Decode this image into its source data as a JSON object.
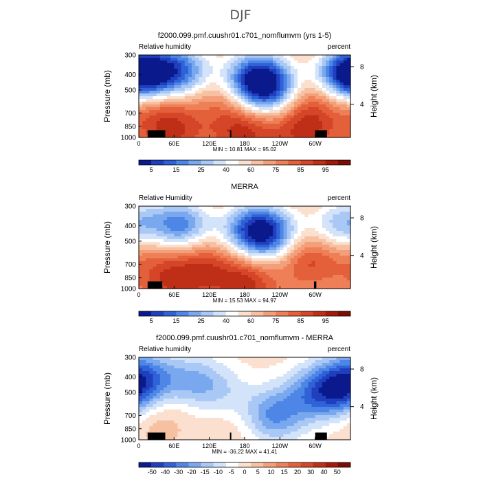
{
  "figure": {
    "suptitle": "DJF"
  },
  "colorscales": {
    "rh": {
      "colors": [
        "#0a1a8c",
        "#1f3fbf",
        "#2f62d6",
        "#4d86e6",
        "#7aa8ef",
        "#a9c8f5",
        "#d3e3fa",
        "#ffffff",
        "#fbe0cf",
        "#f7c0a0",
        "#f3a07a",
        "#ee7f57",
        "#e4603a",
        "#d54527",
        "#bf2e16",
        "#a31a0b",
        "#7d0c04"
      ],
      "tick_labels": [
        "5",
        "15",
        "25",
        "40",
        "60",
        "75",
        "85",
        "95"
      ]
    },
    "diff": {
      "colors": [
        "#0a1a8c",
        "#1f3fbf",
        "#2f62d6",
        "#4d86e6",
        "#7aa8ef",
        "#a9c8f5",
        "#d3e3fa",
        "#ffffff",
        "#fbe0cf",
        "#f7c0a0",
        "#f3a07a",
        "#ee7f57",
        "#e4603a",
        "#d54527",
        "#bf2e16",
        "#a31a0b",
        "#7d0c04"
      ],
      "tick_labels": [
        "-50",
        "-40",
        "-30",
        "-20",
        "-15",
        "-10",
        "-5",
        "0",
        "5",
        "10",
        "15",
        "20",
        "30",
        "40",
        "50"
      ]
    }
  },
  "chart_data": [
    {
      "type": "heatmap",
      "title": "f2000.099.pmf.cuushr01.c701_nomflumvm (yrs 1-5)",
      "left_label": "Relative humidity",
      "right_label": "percent",
      "ylabel": "Pressure (mb)",
      "y2label": "Height (km)",
      "y_ticks": [
        "300",
        "400",
        "500",
        "700",
        "850",
        "1000"
      ],
      "y2_ticks": [
        "8",
        "4"
      ],
      "x_ticks": [
        "0",
        "60E",
        "120E",
        "180",
        "120W",
        "60W"
      ],
      "xlim": [
        0,
        360
      ],
      "ylim": [
        1000,
        300
      ],
      "stats": "MIN =   10.81   MAX =   95.02",
      "min": 10.81,
      "max": 95.02,
      "scale": "rh",
      "fields": {
        "base": 60,
        "blobs": [
          {
            "lon": 70,
            "p": 380,
            "amp": -40
          },
          {
            "lon": 200,
            "p": 420,
            "amp": -45
          },
          {
            "lon": 220,
            "p": 500,
            "amp": -35
          },
          {
            "lon": 5,
            "p": 400,
            "amp": -35
          },
          {
            "lon": 355,
            "p": 400,
            "amp": -35
          },
          {
            "lon": 30,
            "p": 650,
            "amp": 15
          },
          {
            "lon": 300,
            "p": 600,
            "amp": 15
          },
          {
            "lon": 140,
            "p": 600,
            "amp": 10
          },
          {
            "lon": 180,
            "p": 920,
            "amp": 25
          },
          {
            "lon": 60,
            "p": 920,
            "amp": 20
          },
          {
            "lon": 280,
            "p": 920,
            "amp": 22
          }
        ]
      },
      "topography_lon": [
        [
          15,
          45
        ],
        [
          155,
          157
        ],
        [
          300,
          320
        ]
      ]
    },
    {
      "type": "heatmap",
      "title": "MERRA",
      "left_label": "Relative Humidity",
      "right_label": "percent",
      "ylabel": "Pressure (mb)",
      "y2label": "Height (km)",
      "y_ticks": [
        "300",
        "400",
        "500",
        "700",
        "850",
        "1000"
      ],
      "y2_ticks": [
        "8",
        "4"
      ],
      "x_ticks": [
        "0",
        "60E",
        "120E",
        "180",
        "120W",
        "60W"
      ],
      "xlim": [
        0,
        360
      ],
      "ylim": [
        1000,
        300
      ],
      "stats": "MIN =   15.53   MAX =   94.97",
      "min": 15.53,
      "max": 94.97,
      "scale": "rh",
      "fields": {
        "base": 60,
        "blobs": [
          {
            "lon": 70,
            "p": 400,
            "amp": -40
          },
          {
            "lon": 220,
            "p": 450,
            "amp": -40
          },
          {
            "lon": 190,
            "p": 420,
            "amp": -30
          },
          {
            "lon": 345,
            "p": 400,
            "amp": -30
          },
          {
            "lon": 110,
            "p": 700,
            "amp": 18
          },
          {
            "lon": 290,
            "p": 650,
            "amp": 20
          },
          {
            "lon": 20,
            "p": 600,
            "amp": 12
          },
          {
            "lon": 180,
            "p": 920,
            "amp": 25
          },
          {
            "lon": 60,
            "p": 930,
            "amp": 20
          }
        ]
      },
      "topography_lon": [
        [
          15,
          40
        ],
        [
          298,
          302
        ]
      ]
    },
    {
      "type": "heatmap",
      "title": "f2000.099.pmf.cuushr01.c701_nomflumvm - MERRA",
      "left_label": "Relative humidity",
      "right_label": "percent",
      "ylabel": "Pressure (mb)",
      "y2label": "Height (km)",
      "y_ticks": [
        "300",
        "400",
        "500",
        "700",
        "850",
        "1000"
      ],
      "y2_ticks": [
        "8",
        "4"
      ],
      "x_ticks": [
        "0",
        "60E",
        "120E",
        "180",
        "120W",
        "60W"
      ],
      "xlim": [
        0,
        360
      ],
      "ylim": [
        1000,
        300
      ],
      "stats": "MIN =  -36.22   MAX =   41.41",
      "min": -36.22,
      "max": 41.41,
      "scale": "diff",
      "fields": {
        "base": 0,
        "blobs": [
          {
            "lon": 5,
            "p": 400,
            "amp": -30
          },
          {
            "lon": 90,
            "p": 420,
            "amp": -20
          },
          {
            "lon": 230,
            "p": 700,
            "amp": -30
          },
          {
            "lon": 300,
            "p": 500,
            "amp": -25
          },
          {
            "lon": 345,
            "p": 500,
            "amp": -25
          },
          {
            "lon": 140,
            "p": 500,
            "amp": -12
          },
          {
            "lon": 30,
            "p": 700,
            "amp": 10
          },
          {
            "lon": 160,
            "p": 800,
            "amp": 5
          }
        ]
      },
      "topography_lon": [
        [
          15,
          45
        ],
        [
          155,
          157
        ],
        [
          300,
          320
        ]
      ]
    }
  ]
}
